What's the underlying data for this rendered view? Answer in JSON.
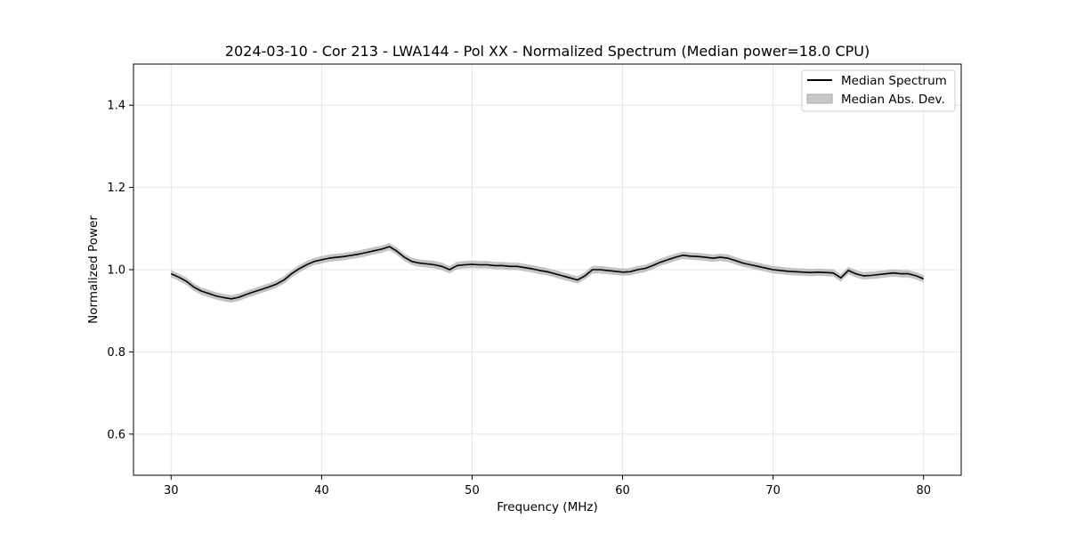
{
  "chart_data": {
    "type": "line",
    "title": "2024-03-10 - Cor 213 - LWA144 - Pol XX - Normalized Spectrum (Median power=18.0 CPU)",
    "xlabel": "Frequency (MHz)",
    "ylabel": "Normalized Power",
    "xlim": [
      27.5,
      82.5
    ],
    "ylim": [
      0.5,
      1.5
    ],
    "x_ticks": [
      30,
      40,
      50,
      60,
      70,
      80
    ],
    "y_ticks": [
      0.6,
      0.8,
      1.0,
      1.2,
      1.4
    ],
    "x_tick_labels": [
      "30",
      "40",
      "50",
      "60",
      "70",
      "80"
    ],
    "y_tick_labels": [
      "0.6",
      "0.8",
      "1.0",
      "1.2",
      "1.4"
    ],
    "grid": true,
    "legend_position": "top-right",
    "legend": {
      "line_label": "Median Spectrum",
      "band_label": "Median Abs. Dev."
    },
    "colors": {
      "line": "#000000",
      "band": "#b0b0b0",
      "grid": "#e6e6e6"
    },
    "series": [
      {
        "name": "Median Spectrum",
        "x": [
          30,
          30.5,
          31,
          31.5,
          32,
          32.5,
          33,
          33.5,
          34,
          34.5,
          35,
          35.5,
          36,
          36.5,
          37,
          37.5,
          38,
          38.5,
          39,
          39.5,
          40,
          40.5,
          41,
          41.5,
          42,
          42.5,
          43,
          43.5,
          44,
          44.5,
          45,
          45.5,
          46,
          46.5,
          47,
          47.5,
          48,
          48.5,
          49,
          49.5,
          50,
          50.5,
          51,
          51.5,
          52,
          52.5,
          53,
          53.5,
          54,
          54.5,
          55,
          55.5,
          56,
          56.5,
          57,
          57.5,
          58,
          58.5,
          59,
          59.5,
          60,
          60.5,
          61,
          61.5,
          62,
          62.5,
          63,
          63.5,
          64,
          64.5,
          65,
          65.5,
          66,
          66.5,
          67,
          67.5,
          68,
          68.5,
          69,
          69.5,
          70,
          70.5,
          71,
          71.5,
          72,
          72.5,
          73,
          73.5,
          74,
          74.5,
          75,
          75.5,
          76,
          76.5,
          77,
          77.5,
          78,
          78.5,
          79,
          79.5,
          80
        ],
        "y": [
          0.99,
          0.982,
          0.972,
          0.958,
          0.948,
          0.942,
          0.936,
          0.932,
          0.929,
          0.933,
          0.94,
          0.946,
          0.952,
          0.958,
          0.965,
          0.975,
          0.99,
          1.002,
          1.012,
          1.02,
          1.024,
          1.028,
          1.03,
          1.032,
          1.035,
          1.038,
          1.042,
          1.046,
          1.05,
          1.056,
          1.045,
          1.03,
          1.02,
          1.016,
          1.014,
          1.012,
          1.008,
          1.0,
          1.01,
          1.012,
          1.013,
          1.012,
          1.012,
          1.01,
          1.01,
          1.008,
          1.008,
          1.005,
          1.002,
          0.998,
          0.995,
          0.99,
          0.985,
          0.98,
          0.975,
          0.985,
          1.0,
          1.0,
          0.998,
          0.996,
          0.994,
          0.995,
          1.0,
          1.003,
          1.01,
          1.018,
          1.024,
          1.03,
          1.035,
          1.033,
          1.032,
          1.03,
          1.028,
          1.03,
          1.028,
          1.022,
          1.016,
          1.012,
          1.008,
          1.004,
          1.0,
          0.998,
          0.996,
          0.995,
          0.994,
          0.993,
          0.994,
          0.993,
          0.992,
          0.98,
          0.998,
          0.99,
          0.985,
          0.986,
          0.988,
          0.99,
          0.992,
          0.99,
          0.99,
          0.985,
          0.978
        ]
      }
    ],
    "band_halfwidth": 0.009
  }
}
